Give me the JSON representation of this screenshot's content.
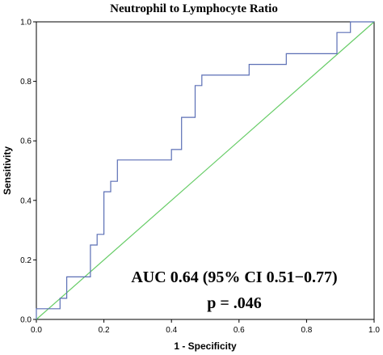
{
  "chart_data": {
    "type": "line",
    "title": "Neutrophil to Lymphocyte Ratio",
    "xlabel": "1 - Specificity",
    "ylabel": "Sensitivity",
    "xlim": [
      0,
      1
    ],
    "ylim": [
      0,
      1
    ],
    "xticks": [
      "0.0",
      "0.2",
      "0.4",
      "0.6",
      "0.8",
      "1.0"
    ],
    "yticks": [
      "0.0",
      "0.2",
      "0.4",
      "0.6",
      "0.8",
      "1.0"
    ],
    "grid": false,
    "series": [
      {
        "color": "#5b6fb5",
        "x": [
          0,
          0,
          0.07,
          0.07,
          0.09,
          0.09,
          0.16,
          0.16,
          0.18,
          0.18,
          0.2,
          0.2,
          0.22,
          0.22,
          0.24,
          0.24,
          0.4,
          0.4,
          0.43,
          0.43,
          0.47,
          0.47,
          0.49,
          0.49,
          0.51,
          0.51,
          0.63,
          0.63,
          0.74,
          0.74,
          0.89,
          0.89,
          0.93,
          0.93,
          1
        ],
        "y": [
          0,
          0.036,
          0.036,
          0.071,
          0.071,
          0.143,
          0.143,
          0.25,
          0.25,
          0.286,
          0.286,
          0.429,
          0.429,
          0.464,
          0.464,
          0.536,
          0.536,
          0.571,
          0.571,
          0.679,
          0.679,
          0.786,
          0.786,
          0.821,
          0.821,
          0.821,
          0.821,
          0.857,
          0.857,
          0.893,
          0.893,
          0.964,
          0.964,
          1.0,
          1.0
        ]
      },
      {
        "color": "#66cc66",
        "x": [
          0,
          1
        ],
        "y": [
          0,
          1
        ]
      }
    ],
    "annotations": [
      "AUC 0.64 (95% CI 0.51−0.77)",
      "p = .046"
    ]
  }
}
